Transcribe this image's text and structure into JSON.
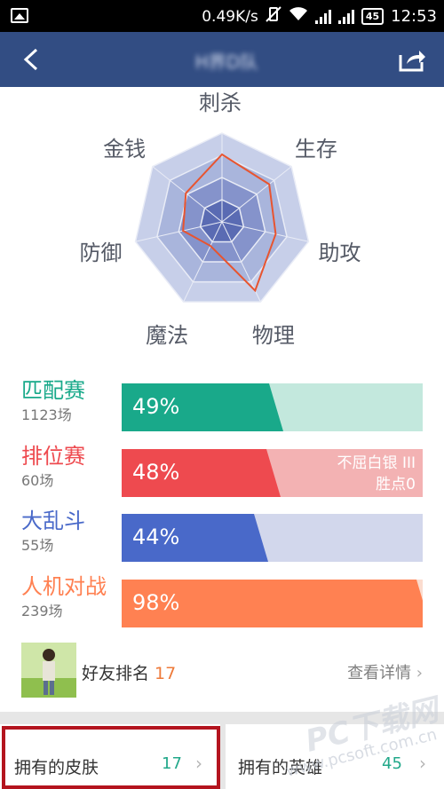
{
  "statusbar": {
    "speed": "0.49K/s",
    "battery": "45",
    "time": "12:53"
  },
  "header": {
    "title": "H界D队"
  },
  "radar": {
    "axes": [
      "刺杀",
      "生存",
      "助攻",
      "物理",
      "魔法",
      "防御",
      "金钱"
    ],
    "values": [
      0.76,
      0.68,
      0.62,
      0.86,
      0.3,
      0.45,
      0.52
    ],
    "max": 1
  },
  "modes": [
    {
      "name": "匹配赛",
      "count": "1123场",
      "percent": "49%",
      "value": 0.49,
      "color": "#19a98a",
      "bg": "#c3e8dd",
      "extra1": "",
      "extra2": ""
    },
    {
      "name": "排位赛",
      "count": "60场",
      "percent": "48%",
      "value": 0.48,
      "color": "#ee4a4f",
      "bg": "#f3b2b3",
      "extra1": "不屈白银 III",
      "extra2": "胜点0"
    },
    {
      "name": "大乱斗",
      "count": "55场",
      "percent": "44%",
      "value": 0.44,
      "color": "#4969c9",
      "bg": "#d2d7ec",
      "extra1": "",
      "extra2": ""
    },
    {
      "name": "人机对战",
      "count": "239场",
      "percent": "98%",
      "value": 0.98,
      "color": "#ff8152",
      "bg": "#fbdccf",
      "extra1": "",
      "extra2": ""
    }
  ],
  "friend": {
    "label": "好友排名",
    "rank": "17",
    "detail": "查看详情",
    "chevron": "›"
  },
  "bottom": {
    "skins_label": "拥有的皮肤",
    "skins_count": "17",
    "heroes_label": "拥有的英雄",
    "heroes_count": "45",
    "chevron": "›"
  },
  "watermark": {
    "text": "PC下载网",
    "url": "www.pcsoft.com.cn"
  },
  "colors": {
    "navbar": "#324d83",
    "radar_line": "#e8542f",
    "highlight": "#b4141e"
  }
}
